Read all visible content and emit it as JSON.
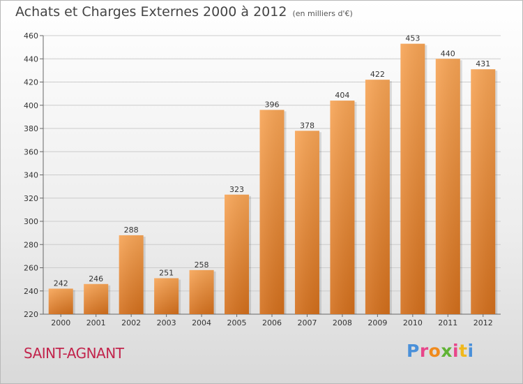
{
  "header": {
    "title": "Achats et Charges Externes 2000 à 2012",
    "unit": "(en milliers d'€)"
  },
  "commune": "SAINT-AGNANT",
  "brand": {
    "text": "Proxiti",
    "letter_colors": [
      "#4a90d9",
      "#e8468a",
      "#f08a1c",
      "#5fb334",
      "#e8468a",
      "#f0b81c",
      "#4a90d9"
    ]
  },
  "colors": {
    "bar_top": "#f7a455",
    "bar_bottom": "#d36f1c",
    "grid": "#cccccc"
  },
  "chart_data": {
    "type": "bar",
    "title": "Achats et Charges Externes 2000 à 2012",
    "xlabel": "",
    "ylabel": "",
    "categories": [
      "2000",
      "2001",
      "2002",
      "2003",
      "2004",
      "2005",
      "2006",
      "2007",
      "2008",
      "2009",
      "2010",
      "2011",
      "2012"
    ],
    "values": [
      242,
      246,
      288,
      251,
      258,
      323,
      396,
      378,
      404,
      422,
      453,
      440,
      431
    ],
    "ylim": [
      220,
      460
    ],
    "yticks": [
      220,
      240,
      260,
      280,
      300,
      320,
      340,
      360,
      380,
      400,
      420,
      440,
      460
    ],
    "grid": true,
    "legend": "none"
  }
}
